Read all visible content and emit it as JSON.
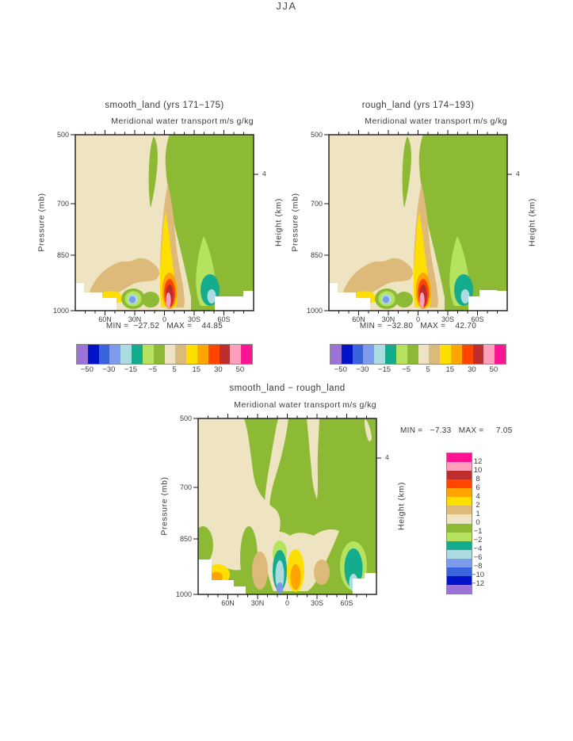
{
  "season_title": "JJA",
  "palette": {
    "purple": "#9B72D8",
    "dark_blue": "#0013C8",
    "blue": "#3B63DE",
    "periwinkle": "#7C9BEA",
    "pale_cyan": "#ACDCE0",
    "teal": "#14AC8C",
    "light_green": "#B5E35F",
    "olive": "#8CBA35",
    "cream": "#EFE4C2",
    "tan": "#DDB97A",
    "yellow": "#FFDF00",
    "orange": "#FFA400",
    "red_orange": "#FF4500",
    "dark_red": "#BE2C2C",
    "pink": "#FF9FBE",
    "magenta": "#FF1493"
  },
  "colorbar_horizontal": {
    "cell_colors": [
      "#9B72D8",
      "#0013C8",
      "#3B63DE",
      "#7C9BEA",
      "#ACDCE0",
      "#14AC8C",
      "#B5E35F",
      "#8CBA35",
      "#EFE4C2",
      "#DDB97A",
      "#FFDF00",
      "#FFA400",
      "#FF4500",
      "#BE2C2C",
      "#FF9FBE",
      "#FF1493"
    ],
    "labels": [
      "−50",
      "−30",
      "−15",
      "−5",
      "5",
      "15",
      "30",
      "50"
    ]
  },
  "colorbar_vertical": {
    "cell_colors": [
      "#FF1493",
      "#FF9FBE",
      "#BE2C2C",
      "#FF4500",
      "#FFA400",
      "#FFDF00",
      "#DDB97A",
      "#EFE4C2",
      "#8CBA35",
      "#B5E35F",
      "#14AC8C",
      "#ACDCE0",
      "#7C9BEA",
      "#3B63DE",
      "#0013C8",
      "#9B72D8"
    ],
    "labels": [
      "12",
      "10",
      "8",
      "6",
      "4",
      "2",
      "1",
      "0",
      "−1",
      "−2",
      "−4",
      "−6",
      "−8",
      "−10",
      "−12"
    ]
  },
  "chart_data": [
    {
      "type": "heatmap",
      "id": "smooth_land",
      "title": "smooth_land (yrs 171−175)",
      "subtitle": "Meridional water transport",
      "units": "m/s g/kg",
      "xticks": [
        "60N",
        "30N",
        "0",
        "30S",
        "60S"
      ],
      "x_domain": [
        "90N",
        "90S"
      ],
      "ylabel": "Pressure (mb)",
      "yticks": [
        "500",
        "700",
        "850",
        "1000"
      ],
      "y_domain": [
        500,
        1000
      ],
      "ylabel_right": "Height (km)",
      "ytick_right": "4",
      "min": -27.52,
      "max": 44.85,
      "stats_text": "MIN =  −27.52   MAX =    44.85",
      "contour_levels_labeled": [
        -50,
        -30,
        -15,
        -5,
        5,
        15,
        30,
        50
      ],
      "legend_position": "bottom",
      "grid": false
    },
    {
      "type": "heatmap",
      "id": "rough_land",
      "title": "rough_land (yrs 174−193)",
      "subtitle": "Meridional water transport",
      "units": "m/s g/kg",
      "xticks": [
        "60N",
        "30N",
        "0",
        "30S",
        "60S"
      ],
      "x_domain": [
        "90N",
        "90S"
      ],
      "ylabel": "Pressure (mb)",
      "yticks": [
        "500",
        "700",
        "850",
        "1000"
      ],
      "y_domain": [
        500,
        1000
      ],
      "ylabel_right": "Height (km)",
      "ytick_right": "4",
      "min": -32.8,
      "max": 42.7,
      "stats_text": "MIN =  −32.80   MAX =    42.70",
      "contour_levels_labeled": [
        -50,
        -30,
        -15,
        -5,
        5,
        15,
        30,
        50
      ],
      "legend_position": "bottom",
      "grid": false
    },
    {
      "type": "heatmap",
      "id": "difference",
      "title": "smooth_land − rough_land",
      "subtitle": "Meridional water transport",
      "units": "m/s g/kg",
      "xticks": [
        "60N",
        "30N",
        "0",
        "30S",
        "60S"
      ],
      "x_domain": [
        "90N",
        "90S"
      ],
      "ylabel": "Pressure (mb)",
      "yticks": [
        "500",
        "700",
        "850",
        "1000"
      ],
      "y_domain": [
        500,
        1000
      ],
      "ylabel_right": "Height (km)",
      "ytick_right": "4",
      "min": -7.33,
      "max": 7.05,
      "stats_text": "MIN =   −7.33   MAX =     7.05",
      "contour_levels_labeled": [
        12,
        10,
        8,
        6,
        4,
        2,
        1,
        0,
        -1,
        -2,
        -4,
        -6,
        -8,
        -10,
        -12
      ],
      "legend_position": "right",
      "grid": false
    }
  ]
}
